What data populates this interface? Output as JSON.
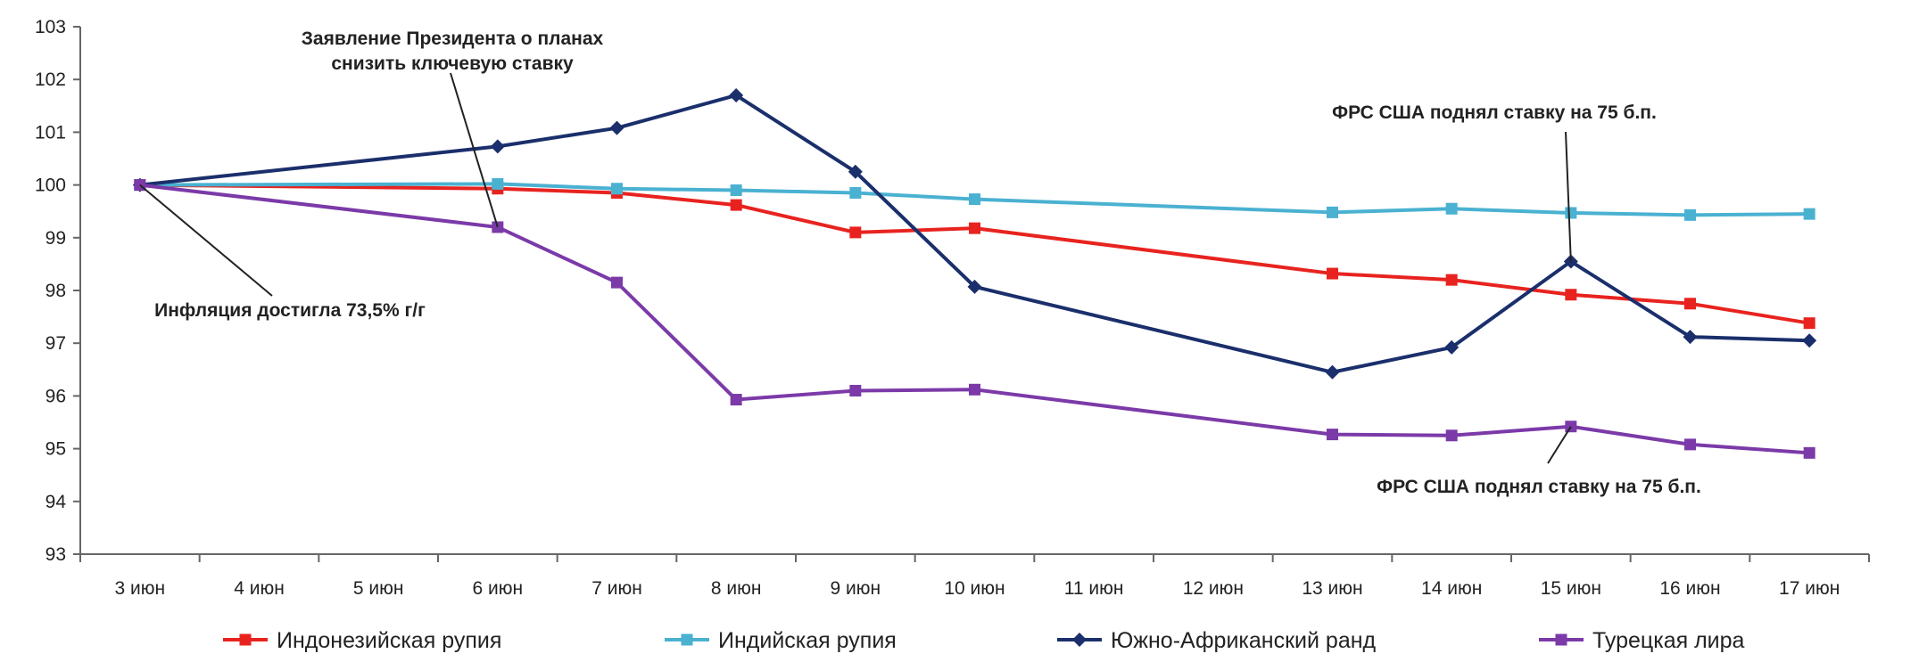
{
  "chart_data": {
    "type": "line",
    "categories": [
      "3 июн",
      "4 июн",
      "5 июн",
      "6 июн",
      "7 июн",
      "8 июн",
      "9 июн",
      "10 июн",
      "11 июн",
      "12 июн",
      "13 июн",
      "14 июн",
      "15 июн",
      "16 июн",
      "17 июн"
    ],
    "ylim": [
      93,
      103
    ],
    "yticks": [
      93,
      94,
      95,
      96,
      97,
      98,
      99,
      100,
      101,
      102,
      103
    ],
    "grid": false,
    "legend_position": "bottom",
    "series": [
      {
        "name": "Индонезийская рупия",
        "color": "#e8231f",
        "marker": "square",
        "points": [
          [
            "3 июн",
            100
          ],
          [
            "6 июн",
            99.93
          ],
          [
            "7 июн",
            99.85
          ],
          [
            "8 июн",
            99.62
          ],
          [
            "9 июн",
            99.1
          ],
          [
            "10 июн",
            99.18
          ],
          [
            "13 июн",
            98.32
          ],
          [
            "14 июн",
            98.2
          ],
          [
            "15 июн",
            97.92
          ],
          [
            "16 июн",
            97.75
          ],
          [
            "17 июн",
            97.38
          ]
        ]
      },
      {
        "name": "Индийская рупия",
        "color": "#4ab1d1",
        "marker": "square",
        "points": [
          [
            "3 июн",
            100
          ],
          [
            "6 июн",
            100.02
          ],
          [
            "7 июн",
            99.93
          ],
          [
            "8 июн",
            99.9
          ],
          [
            "9 июн",
            99.85
          ],
          [
            "10 июн",
            99.73
          ],
          [
            "13 июн",
            99.48
          ],
          [
            "14 июн",
            99.55
          ],
          [
            "15 июн",
            99.47
          ],
          [
            "16 июн",
            99.43
          ],
          [
            "17 июн",
            99.45
          ]
        ]
      },
      {
        "name": "Южно-Африканский ранд",
        "color": "#1a2f6b",
        "marker": "diamond",
        "points": [
          [
            "3 июн",
            100
          ],
          [
            "6 июн",
            100.73
          ],
          [
            "7 июн",
            101.08
          ],
          [
            "8 июн",
            101.7
          ],
          [
            "9 июн",
            100.25
          ],
          [
            "10 июн",
            98.07
          ],
          [
            "13 июн",
            96.45
          ],
          [
            "14 июн",
            96.92
          ],
          [
            "15 июн",
            98.55
          ],
          [
            "16 июн",
            97.12
          ],
          [
            "17 июн",
            97.05
          ]
        ]
      },
      {
        "name": "Турецкая лира",
        "color": "#7b3aa8",
        "marker": "square",
        "points": [
          [
            "3 июн",
            100
          ],
          [
            "6 июн",
            99.2
          ],
          [
            "7 июн",
            98.15
          ],
          [
            "8 июн",
            95.93
          ],
          [
            "9 июн",
            96.1
          ],
          [
            "10 июн",
            96.12
          ],
          [
            "13 июн",
            95.27
          ],
          [
            "14 июн",
            95.25
          ],
          [
            "15 июн",
            95.42
          ],
          [
            "16 июн",
            95.08
          ],
          [
            "17 июн",
            94.92
          ]
        ]
      }
    ],
    "annotations": [
      {
        "lines": [
          "Инфляция достигла 73,5% г/г"
        ],
        "target": [
          "3 июн",
          100
        ]
      },
      {
        "lines": [
          "Заявление Президента о планах",
          "снизить ключевую ставку"
        ],
        "target": [
          "6 июн",
          99.2
        ]
      },
      {
        "lines": [
          "ФРС США поднял ставку на 75 б.п."
        ],
        "target": [
          "15 июн",
          98.55
        ]
      },
      {
        "lines": [
          "ФРС США поднял ставку на 75 б.п."
        ],
        "target": [
          "15 июн",
          95.42
        ]
      }
    ]
  }
}
